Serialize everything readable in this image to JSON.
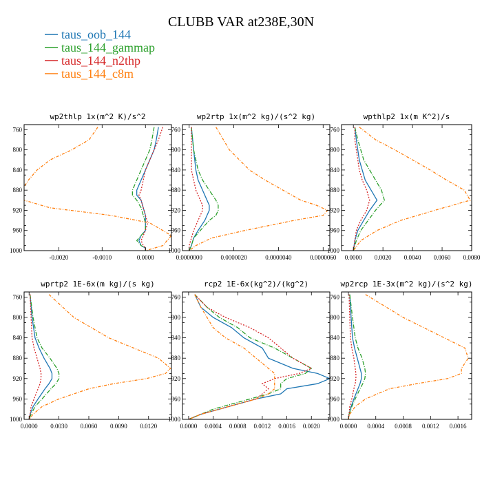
{
  "title": "CLUBB VAR at238E,30N",
  "series": [
    {
      "name": "taus_oob_144",
      "color": "#1f77b4",
      "dash": ""
    },
    {
      "name": "taus_144_gammap",
      "color": "#2ca02c",
      "dash": "6,2,1,2"
    },
    {
      "name": "taus_144_n2thp",
      "color": "#d62728",
      "dash": "2,2"
    },
    {
      "name": "taus_144_c8m",
      "color": "#ff7f0e",
      "dash": "4,2,1,2"
    }
  ],
  "chart_data": [
    {
      "type": "line",
      "title": "wp2thlp  1x(m^2 K)/s^2",
      "xlim": [
        -0.0028,
        0.0006
      ],
      "ylim": [
        1000,
        750
      ],
      "xticks": [
        -0.002,
        -0.001,
        0.0
      ],
      "xtick_labels": [
        "-0.0020",
        "-0.0010",
        "0.0000"
      ],
      "yticks": [
        760,
        800,
        840,
        880,
        920,
        960,
        1000
      ],
      "y": [
        755,
        780,
        800,
        820,
        840,
        860,
        880,
        890,
        900,
        915,
        930,
        945,
        960,
        970,
        980,
        990,
        995,
        1000
      ],
      "series": [
        {
          "values": [
            0.0003,
            0.00025,
            0.0002,
            0.0001,
            0.0,
            -0.0001,
            -0.0002,
            -0.0002,
            -0.0001,
            -5e-05,
            0.0,
            0.0,
            0.0,
            -0.0001,
            -0.00015,
            -0.0001,
            0.0,
            0.0
          ]
        },
        {
          "values": [
            0.0002,
            0.00015,
            0.0001,
            0.0,
            -0.0001,
            -0.0002,
            -0.0003,
            -0.0003,
            -0.0002,
            -0.0001,
            -5e-05,
            0.0,
            0.0,
            -0.0001,
            -0.0002,
            -0.0001,
            0.0,
            0.0
          ]
        },
        {
          "values": [
            0.0004,
            0.0003,
            0.0002,
            0.0001,
            0.0,
            -5e-05,
            -0.0001,
            -0.00015,
            -0.0001,
            -5e-05,
            0.0,
            5e-05,
            0.0,
            -5e-05,
            -0.0001,
            -5e-05,
            0.0,
            0.0
          ]
        },
        {
          "values": [
            -0.0011,
            -0.0013,
            -0.0017,
            -0.0022,
            -0.0025,
            -0.0027,
            -0.00285,
            -0.0029,
            -0.0028,
            -0.0022,
            -0.0008,
            0.0001,
            0.0004,
            0.0006,
            0.0005,
            0.0004,
            0.0002,
            0.0
          ]
        }
      ]
    },
    {
      "type": "line",
      "title": "wp2rtp  1x(m^2 kg)/(s^2 kg)",
      "xlim": [
        -3e-07,
        6.3e-06
      ],
      "ylim": [
        1000,
        750
      ],
      "xticks": [
        0.0,
        2e-06,
        4e-06,
        6e-06
      ],
      "xtick_labels": [
        "0.0000000",
        "0.0000020",
        "0.0000040",
        "0.0000060"
      ],
      "yticks": [
        760,
        800,
        840,
        880,
        920,
        960,
        1000
      ],
      "y": [
        755,
        800,
        840,
        860,
        880,
        900,
        910,
        920,
        930,
        940,
        960,
        975,
        990,
        1000
      ],
      "series": [
        {
          "values": [
            1e-07,
            2e-07,
            3e-07,
            4e-07,
            6e-07,
            8e-07,
            9e-07,
            9e-07,
            8e-07,
            7e-07,
            4e-07,
            2e-07,
            1e-07,
            0.0
          ]
        },
        {
          "values": [
            1e-07,
            2e-07,
            4e-07,
            6e-07,
            9e-07,
            1.2e-06,
            1.3e-06,
            1.3e-06,
            1.2e-06,
            9e-07,
            5e-07,
            2e-07,
            1e-07,
            0.0
          ]
        },
        {
          "values": [
            1e-07,
            1e-07,
            1e-07,
            2e-07,
            3e-07,
            5e-07,
            6e-07,
            6e-07,
            5e-07,
            4e-07,
            2e-07,
            1e-07,
            0.0,
            0.0
          ]
        },
        {
          "values": [
            1.2e-06,
            1.8e-06,
            2.7e-06,
            3.4e-06,
            4.2e-06,
            5e-06,
            5.7e-06,
            6.2e-06,
            6e-06,
            4.7e-06,
            2.5e-06,
            1e-06,
            3e-07,
            0.0
          ]
        }
      ]
    },
    {
      "type": "line",
      "title": "wpthlp2  1x(m K^2)/s",
      "xlim": [
        -0.0008,
        0.008
      ],
      "ylim": [
        1000,
        750
      ],
      "xticks": [
        0.0,
        0.002,
        0.004,
        0.006,
        0.008
      ],
      "xtick_labels": [
        "0.0000",
        "0.0020",
        "0.0040",
        "0.0060",
        "0.0080"
      ],
      "yticks": [
        760,
        800,
        840,
        880,
        920,
        960,
        1000
      ],
      "y": [
        755,
        780,
        800,
        820,
        840,
        860,
        880,
        900,
        920,
        940,
        960,
        980,
        1000
      ],
      "series": [
        {
          "values": [
            0.0001,
            0.0002,
            0.0003,
            0.0004,
            0.0006,
            0.0008,
            0.0012,
            0.0016,
            0.0011,
            0.0007,
            0.0003,
            0.0001,
            0.0
          ]
        },
        {
          "values": [
            0.0001,
            0.0003,
            0.0005,
            0.0007,
            0.0011,
            0.0015,
            0.0019,
            0.0021,
            0.0015,
            0.001,
            0.0005,
            0.0002,
            0.0
          ]
        },
        {
          "values": [
            0.0001,
            0.0001,
            0.0002,
            0.0003,
            0.0004,
            0.0006,
            0.0009,
            0.0011,
            0.0009,
            0.0005,
            0.0002,
            0.0001,
            0.0
          ]
        },
        {
          "values": [
            0.0004,
            0.0015,
            0.0028,
            0.004,
            0.0052,
            0.0063,
            0.0075,
            0.0079,
            0.0055,
            0.0032,
            0.0016,
            0.0005,
            0.0
          ]
        }
      ]
    },
    {
      "type": "line",
      "title": "wprtp2  1E-6x(m kg)/(s kg)",
      "xlim": [
        -0.0005,
        0.0143
      ],
      "ylim": [
        1000,
        750
      ],
      "xticks": [
        0.0,
        0.003,
        0.006,
        0.009,
        0.012
      ],
      "xtick_labels": [
        "0.0000",
        "0.0030",
        "0.0060",
        "0.0090",
        "0.0120"
      ],
      "yticks": [
        760,
        800,
        840,
        880,
        920,
        960,
        1000
      ],
      "y": [
        755,
        800,
        840,
        860,
        880,
        900,
        910,
        920,
        930,
        940,
        960,
        975,
        990,
        1000
      ],
      "series": [
        {
          "values": [
            0.0001,
            0.0003,
            0.0006,
            0.001,
            0.0015,
            0.0021,
            0.0023,
            0.0023,
            0.002,
            0.0016,
            0.0009,
            0.0004,
            0.0001,
            0.0
          ]
        },
        {
          "values": [
            0.0001,
            0.0004,
            0.0008,
            0.0013,
            0.0021,
            0.0028,
            0.003,
            0.003,
            0.0027,
            0.0022,
            0.0013,
            0.0006,
            0.0002,
            0.0
          ]
        },
        {
          "values": [
            0.0001,
            0.0002,
            0.0003,
            0.0005,
            0.0008,
            0.0011,
            0.0012,
            0.0012,
            0.0011,
            0.0009,
            0.0005,
            0.0002,
            0.0001,
            0.0
          ]
        },
        {
          "values": [
            0.002,
            0.0045,
            0.008,
            0.0105,
            0.013,
            0.0142,
            0.0137,
            0.0118,
            0.0085,
            0.006,
            0.003,
            0.0013,
            0.0004,
            0.0
          ]
        }
      ]
    },
    {
      "type": "line",
      "title": "rcp2  1E-6x(kg^2)/(kg^2)",
      "xlim": [
        -0.0001,
        0.0023
      ],
      "ylim": [
        1000,
        750
      ],
      "xticks": [
        0.0,
        0.0004,
        0.0008,
        0.0012,
        0.0016,
        0.002
      ],
      "xtick_labels": [
        "0.0000",
        "0.0004",
        "0.0008",
        "0.0012",
        "0.0016",
        "0.0020"
      ],
      "yticks": [
        760,
        800,
        840,
        880,
        920,
        960,
        1000
      ],
      "y": [
        755,
        780,
        800,
        820,
        840,
        860,
        880,
        900,
        910,
        920,
        930,
        940,
        950,
        960,
        970,
        980,
        990,
        1000
      ],
      "series": [
        {
          "values": [
            0.0001,
            0.0002,
            0.0004,
            0.0007,
            0.0009,
            0.0012,
            0.0013,
            0.0017,
            0.0021,
            0.0023,
            0.0021,
            0.0016,
            0.0015,
            0.0011,
            0.0008,
            0.0005,
            0.0002,
            0.0
          ]
        },
        {
          "values": [
            0.0001,
            0.0003,
            0.0005,
            0.0008,
            0.001,
            0.0014,
            0.0017,
            0.002,
            0.0019,
            0.0016,
            0.0015,
            0.0015,
            0.0013,
            0.001,
            0.0007,
            0.0004,
            0.0002,
            0.0
          ]
        },
        {
          "values": [
            0.0001,
            0.0003,
            0.0006,
            0.001,
            0.0013,
            0.0015,
            0.0017,
            0.002,
            0.0018,
            0.0014,
            0.0012,
            0.0013,
            0.0012,
            0.0011,
            0.0008,
            0.0005,
            0.0002,
            0.0
          ]
        },
        {
          "values": [
            0.0001,
            0.0002,
            0.0003,
            0.0004,
            0.0006,
            0.0009,
            0.0011,
            0.0013,
            0.0014,
            0.0014,
            0.0014,
            0.0014,
            0.0013,
            0.0011,
            0.0008,
            0.0005,
            0.0002,
            0.0
          ]
        }
      ]
    },
    {
      "type": "line",
      "title": "wp2rcp  1E-3x(m^2 kg)/(s^2 kg)",
      "xlim": [
        -0.0001,
        0.0018
      ],
      "ylim": [
        1000,
        750
      ],
      "xticks": [
        0.0,
        0.0004,
        0.0008,
        0.0012,
        0.0016
      ],
      "xtick_labels": [
        "0.0000",
        "0.0004",
        "0.0008",
        "0.0012",
        "0.0016"
      ],
      "yticks": [
        760,
        800,
        840,
        880,
        920,
        960,
        1000
      ],
      "y": [
        755,
        800,
        840,
        860,
        880,
        900,
        910,
        920,
        930,
        940,
        960,
        975,
        990,
        1000
      ],
      "series": [
        {
          "values": [
            2e-05,
            4e-05,
            6e-05,
            9e-05,
            0.00013,
            0.00017,
            0.00019,
            0.00019,
            0.00017,
            0.00014,
            8e-05,
            4e-05,
            1e-05,
            0.0
          ]
        },
        {
          "values": [
            2e-05,
            6e-05,
            0.0001,
            0.00014,
            0.0002,
            0.00024,
            0.00025,
            0.00024,
            0.00021,
            0.00017,
            0.0001,
            5e-05,
            1e-05,
            0.0
          ]
        },
        {
          "values": [
            1e-05,
            2e-05,
            3e-05,
            5e-05,
            8e-05,
            0.0001,
            0.00011,
            0.00011,
            0.0001,
            8e-05,
            5e-05,
            2e-05,
            1e-05,
            0.0
          ]
        },
        {
          "values": [
            0.00025,
            0.0008,
            0.0014,
            0.0017,
            0.00175,
            0.00165,
            0.00165,
            0.00145,
            0.001,
            0.0006,
            0.00025,
            0.0001,
            2e-05,
            0.0
          ]
        }
      ]
    }
  ]
}
